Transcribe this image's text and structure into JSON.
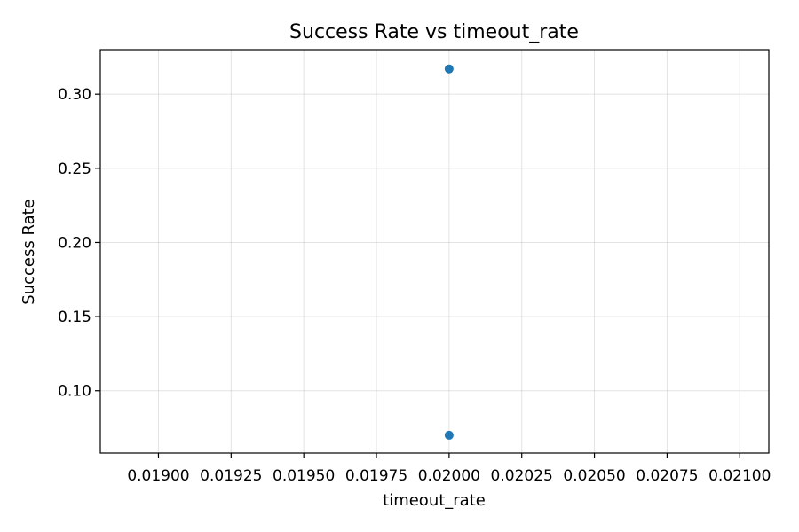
{
  "chart_data": {
    "type": "scatter",
    "title": "Success Rate vs timeout_rate",
    "xlabel": "timeout_rate",
    "ylabel": "Success Rate",
    "xlim": [
      0.0188,
      0.0211
    ],
    "ylim": [
      0.058,
      0.33
    ],
    "x_ticks": [
      0.019,
      0.01925,
      0.0195,
      0.01975,
      0.02,
      0.02025,
      0.0205,
      0.02075,
      0.021
    ],
    "x_tick_labels": [
      "0.01900",
      "0.01925",
      "0.01950",
      "0.01975",
      "0.02000",
      "0.02025",
      "0.02050",
      "0.02075",
      "0.02100"
    ],
    "y_ticks": [
      0.1,
      0.15,
      0.2,
      0.25,
      0.3
    ],
    "y_tick_labels": [
      "0.10",
      "0.15",
      "0.20",
      "0.25",
      "0.30"
    ],
    "grid": true,
    "point_color": "#1f77b4",
    "points": [
      {
        "x": 0.02,
        "y": 0.317
      },
      {
        "x": 0.02,
        "y": 0.07
      }
    ]
  }
}
